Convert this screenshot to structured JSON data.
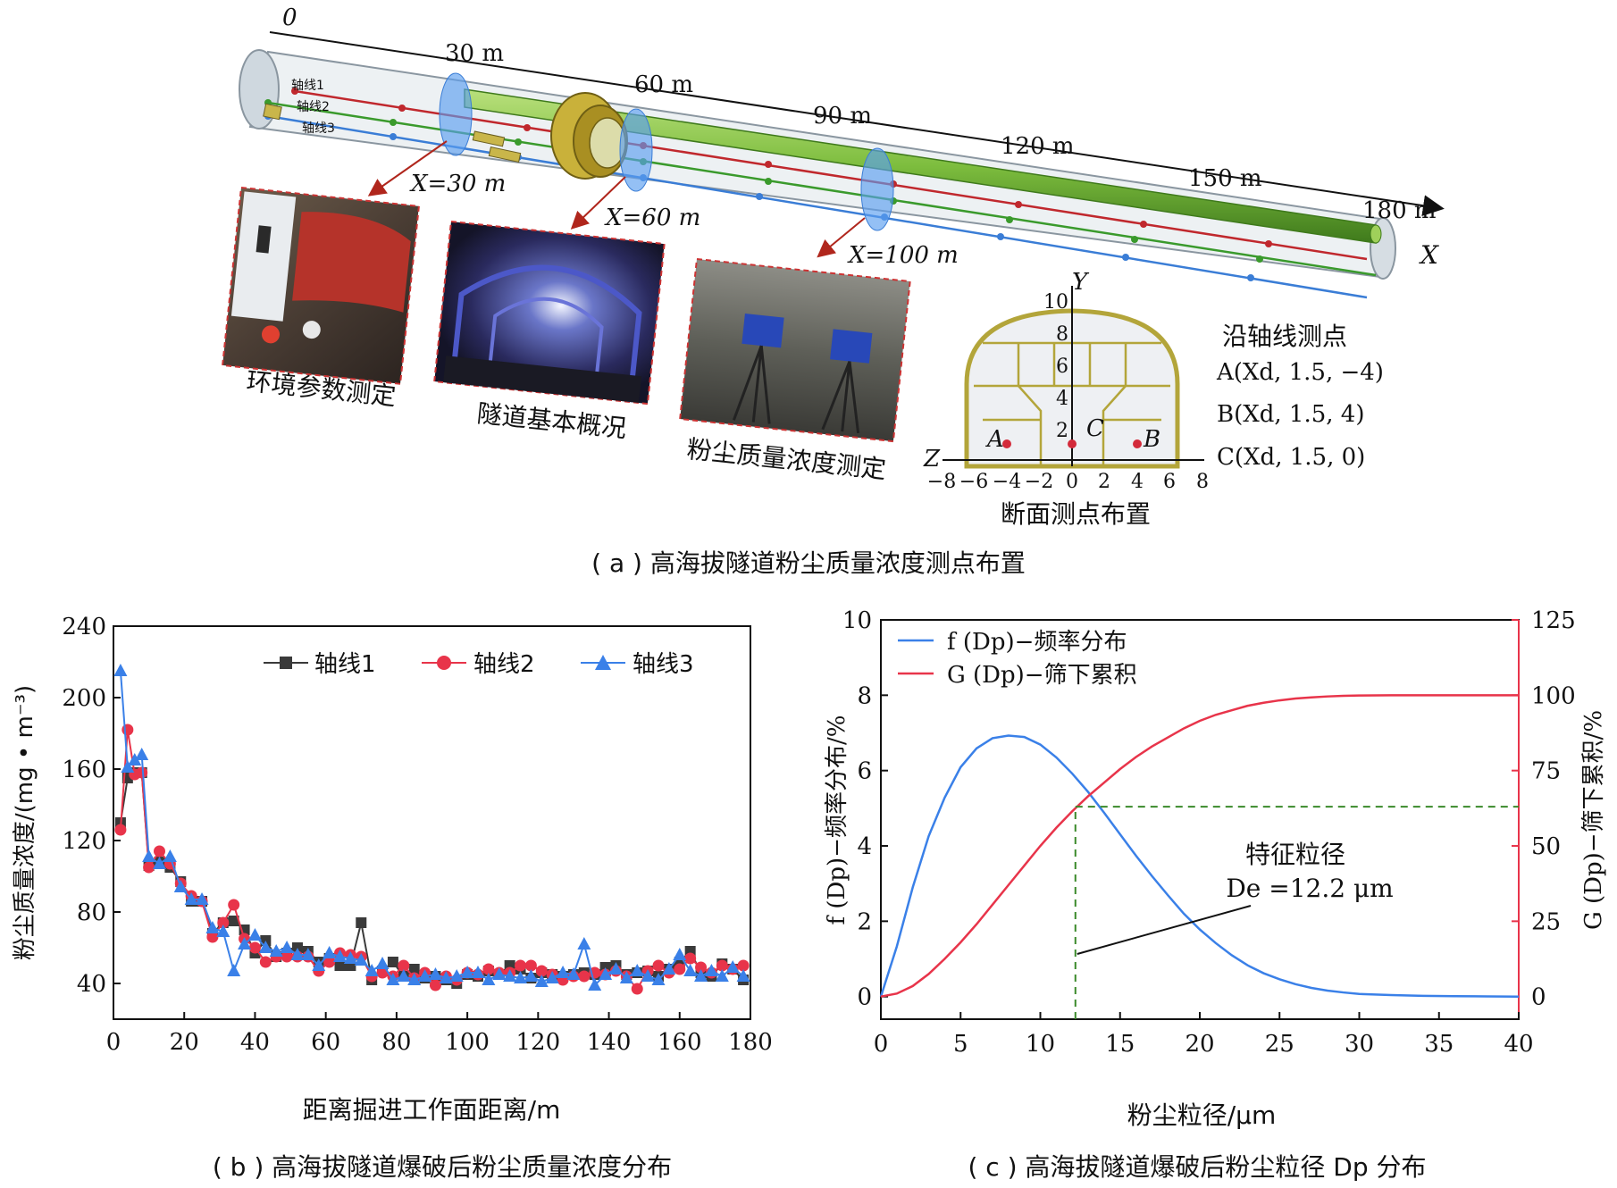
{
  "figure": {
    "caption_a": "( a ) 高海拔隧道粉尘质量浓度测点布置",
    "caption_b": "( b ) 高海拔隧道爆破后粉尘质量浓度分布",
    "caption_c": "( c ) 高海拔隧道爆破后粉尘粒径 Dp 分布"
  },
  "panel_a": {
    "distance_labels": [
      "0",
      "30 m",
      "60 m",
      "90 m",
      "120 m",
      "150 m",
      "180 m"
    ],
    "axis_x_label": "X",
    "axis_lines": [
      "轴线1",
      "轴线2",
      "轴线3"
    ],
    "section_labels": [
      "X=30 m",
      "X=60 m",
      "X=100 m"
    ],
    "photo_captions": [
      "环境参数测定",
      "隧道基本概况",
      "粉尘质量浓度测定"
    ],
    "cross_section": {
      "title": "断面测点布置",
      "y_axis_label": "Y",
      "z_axis_label": "Z",
      "y_ticks": [
        "2",
        "4",
        "6",
        "8",
        "10"
      ],
      "z_ticks": [
        "−8",
        "−6",
        "−4",
        "−2",
        "0",
        "2",
        "4",
        "6",
        "8"
      ],
      "point_labels": [
        "A",
        "B",
        "C"
      ]
    },
    "measure_points": {
      "title": "沿轴线测点",
      "items": [
        "A(Xd, 1.5, −4)",
        "B(Xd, 1.5, 4)",
        "C(Xd, 1.5, 0)"
      ]
    },
    "colors": {
      "axis1": "#c0282d",
      "axis2": "#3a9a2c",
      "axis3": "#3a7dd6",
      "pipe": "#7dbd3e",
      "tunnel": "#b9c3cc"
    }
  },
  "chart_data": [
    {
      "type": "line",
      "panel": "b",
      "xlabel": "距离掘进工作面距离/m",
      "ylabel": "粉尘质量浓度/(mg • m⁻³)",
      "xlim": [
        0,
        180
      ],
      "ylim": [
        20,
        240
      ],
      "x_ticks": [
        0,
        20,
        40,
        60,
        80,
        100,
        120,
        140,
        160,
        180
      ],
      "y_ticks": [
        40,
        80,
        120,
        160,
        200,
        240
      ],
      "legend_position": "top-right",
      "series": [
        {
          "name": "轴线1",
          "color": "#3a3a3a",
          "marker": "square",
          "x": [
            2,
            4,
            6,
            8,
            10,
            13,
            16,
            19,
            22,
            25,
            28,
            31,
            34,
            37,
            40,
            43,
            46,
            49,
            52,
            55,
            58,
            61,
            64,
            67,
            70,
            73,
            76,
            79,
            82,
            85,
            88,
            91,
            94,
            97,
            100,
            103,
            106,
            109,
            112,
            115,
            118,
            121,
            124,
            127,
            130,
            133,
            136,
            139,
            142,
            145,
            148,
            151,
            154,
            157,
            160,
            163,
            166,
            169,
            172,
            175,
            178
          ],
          "values": [
            130,
            155,
            158,
            158,
            106,
            108,
            105,
            97,
            86,
            86,
            68,
            74,
            75,
            70,
            57,
            64,
            55,
            57,
            60,
            58,
            52,
            54,
            50,
            50,
            74,
            42,
            47,
            52,
            44,
            48,
            43,
            44,
            42,
            40,
            45,
            44,
            47,
            45,
            50,
            48,
            43,
            46,
            45,
            44,
            45,
            46,
            45,
            49,
            50,
            45,
            46,
            47,
            44,
            48,
            52,
            58,
            46,
            44,
            51,
            48,
            42
          ]
        },
        {
          "name": "轴线2",
          "color": "#e8344a",
          "marker": "circle",
          "x": [
            2,
            4,
            6,
            8,
            10,
            13,
            16,
            19,
            22,
            25,
            28,
            31,
            34,
            37,
            40,
            43,
            46,
            49,
            52,
            55,
            58,
            61,
            64,
            67,
            70,
            73,
            76,
            79,
            82,
            85,
            88,
            91,
            94,
            97,
            100,
            103,
            106,
            109,
            112,
            115,
            118,
            121,
            124,
            127,
            130,
            133,
            136,
            139,
            142,
            145,
            148,
            151,
            154,
            157,
            160,
            163,
            166,
            169,
            172,
            175,
            178
          ],
          "values": [
            126,
            182,
            157,
            158,
            105,
            114,
            107,
            96,
            89,
            86,
            66,
            74,
            84,
            65,
            60,
            52,
            55,
            55,
            55,
            55,
            47,
            52,
            57,
            56,
            55,
            44,
            46,
            44,
            50,
            43,
            46,
            39,
            44,
            42,
            46,
            45,
            48,
            46,
            46,
            50,
            50,
            47,
            45,
            42,
            44,
            44,
            46,
            45,
            47,
            44,
            37,
            47,
            50,
            46,
            48,
            54,
            49,
            46,
            50,
            48,
            50
          ]
        },
        {
          "name": "轴线3",
          "color": "#3a80e8",
          "marker": "triangle",
          "x": [
            2,
            4,
            6,
            8,
            10,
            13,
            16,
            19,
            22,
            25,
            28,
            31,
            34,
            37,
            40,
            43,
            46,
            49,
            52,
            55,
            58,
            61,
            64,
            67,
            70,
            73,
            76,
            79,
            82,
            85,
            88,
            91,
            94,
            97,
            100,
            103,
            106,
            109,
            112,
            115,
            118,
            121,
            124,
            127,
            130,
            133,
            136,
            139,
            142,
            145,
            148,
            151,
            154,
            157,
            160,
            163,
            166,
            169,
            172,
            175,
            178
          ],
          "values": [
            215,
            161,
            165,
            168,
            111,
            107,
            111,
            94,
            87,
            87,
            71,
            69,
            47,
            62,
            67,
            60,
            58,
            60,
            56,
            56,
            50,
            57,
            55,
            54,
            53,
            47,
            51,
            42,
            44,
            42,
            44,
            45,
            43,
            44,
            46,
            46,
            42,
            45,
            44,
            43,
            44,
            41,
            43,
            46,
            45,
            62,
            39,
            45,
            48,
            43,
            47,
            44,
            42,
            48,
            56,
            47,
            44,
            47,
            44,
            49,
            44
          ]
        }
      ]
    },
    {
      "type": "line",
      "panel": "c",
      "xlabel": "粉尘粒径/μm",
      "ylabel": "f (Dp)−频率分布/%",
      "y2label": "G (Dp)−筛下累积/%",
      "xlim": [
        0,
        40
      ],
      "ylim": [
        -0.6,
        10
      ],
      "y2lim": [
        -7.5,
        125
      ],
      "x_ticks": [
        0,
        5,
        10,
        15,
        20,
        25,
        30,
        35,
        40
      ],
      "y_ticks": [
        0,
        2,
        4,
        6,
        8,
        10
      ],
      "y2_ticks": [
        0,
        25,
        50,
        75,
        100,
        125
      ],
      "legend_position": "top-left",
      "series": [
        {
          "name": "f (Dp)−频率分布",
          "axis": "left",
          "color": "#3a80e8",
          "x": [
            0,
            1,
            2,
            3,
            4,
            5,
            6,
            7,
            8,
            9,
            10,
            11,
            12,
            13,
            14,
            15,
            16,
            17,
            18,
            19,
            20,
            21,
            22,
            23,
            24,
            25,
            26,
            27,
            28,
            29,
            30,
            32,
            34,
            36,
            38,
            40
          ],
          "values": [
            0,
            1.33,
            2.9,
            4.26,
            5.28,
            6.09,
            6.59,
            6.86,
            6.93,
            6.89,
            6.69,
            6.35,
            5.92,
            5.43,
            4.88,
            4.31,
            3.74,
            3.2,
            2.69,
            2.2,
            1.78,
            1.42,
            1.1,
            0.83,
            0.62,
            0.46,
            0.33,
            0.23,
            0.16,
            0.11,
            0.07,
            0.04,
            0.02,
            0.01,
            0.005,
            0.0
          ]
        },
        {
          "name": "G (Dp)−筛下累积",
          "axis": "right",
          "color": "#e8344a",
          "x": [
            0,
            1,
            2,
            3,
            4,
            5,
            6,
            7,
            8,
            9,
            10,
            11,
            12,
            13,
            14,
            15,
            16,
            17,
            18,
            19,
            20,
            21,
            22,
            23,
            24,
            25,
            26,
            27,
            28,
            29,
            30,
            32,
            34,
            36,
            38,
            40
          ],
          "values": [
            0,
            1,
            3.5,
            7.5,
            12.5,
            18,
            24,
            30.5,
            37,
            43.5,
            50,
            56,
            61.5,
            66.5,
            71,
            75.5,
            79.5,
            83,
            86,
            89,
            91.5,
            93.5,
            95,
            96.5,
            97.5,
            98.3,
            98.9,
            99.3,
            99.6,
            99.8,
            99.9,
            100,
            100,
            100,
            100,
            100
          ]
        }
      ],
      "annotation": {
        "title": "特征粒径",
        "text": "De =12.2 μm",
        "x": 12.2,
        "G_at_x": 63
      }
    }
  ]
}
